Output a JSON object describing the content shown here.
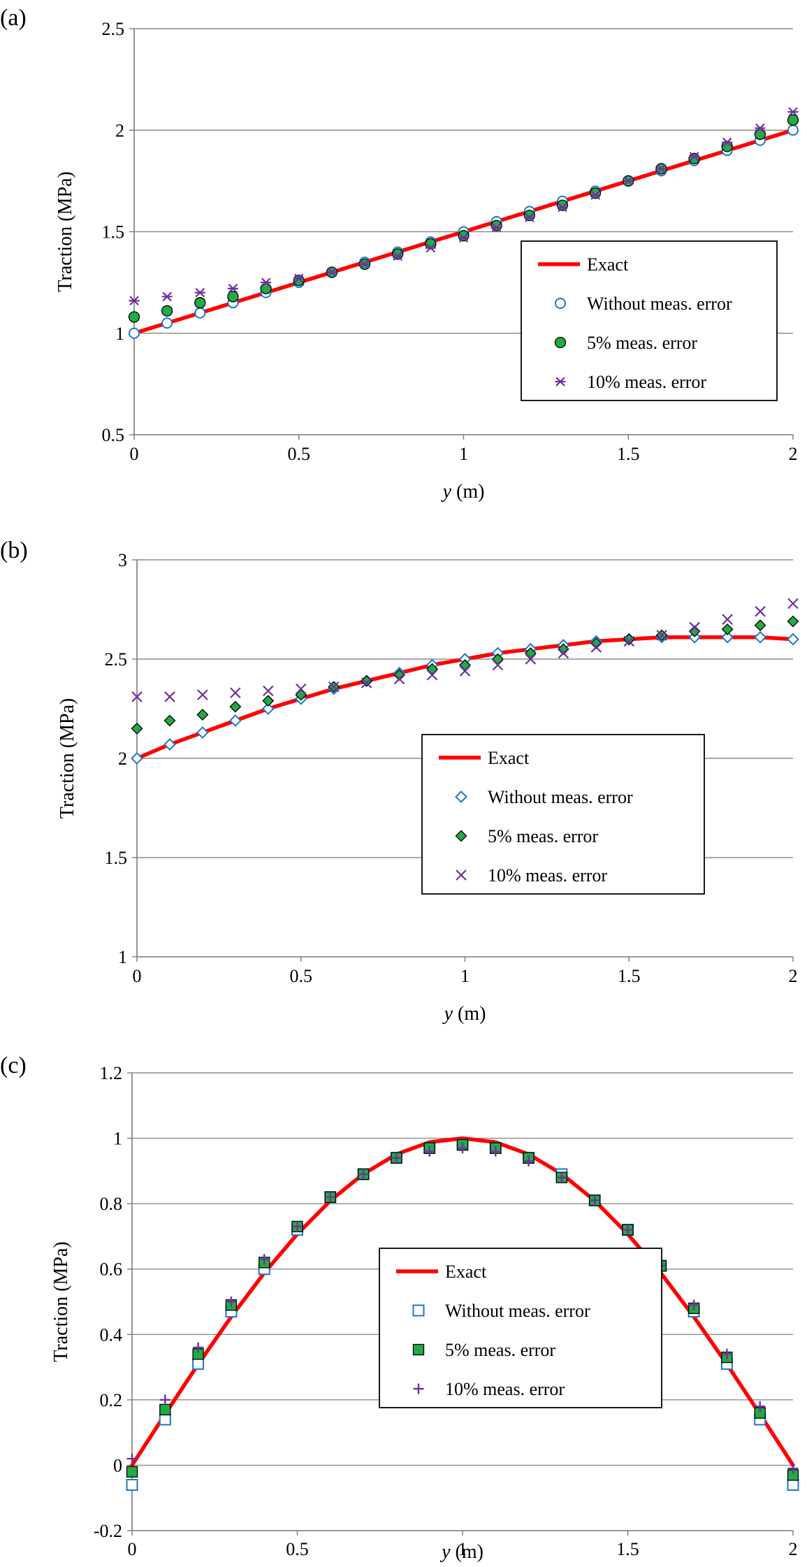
{
  "figure": {
    "colors": {
      "exact": "#ff0000",
      "without_error": "#1f77c8",
      "five_pct_fill": "#22aa44",
      "ten_pct": "#7030a0",
      "grid": "#8c8c8c"
    }
  },
  "chart_data": [
    {
      "panel_label": "(a)",
      "type": "line",
      "xlabel_italic": "y",
      "xlabel_unit": "(m)",
      "ylabel": "Traction (MPa)",
      "xlim": [
        0,
        2
      ],
      "ylim": [
        0.5,
        2.5
      ],
      "xticks": [
        0,
        0.5,
        1,
        1.5,
        2
      ],
      "xtick_labels": [
        "0",
        "0.5",
        "1",
        "1.5",
        "2"
      ],
      "yticks": [
        0.5,
        1,
        1.5,
        2,
        2.5
      ],
      "ytick_labels": [
        "0.5",
        "1",
        "1.5",
        "2",
        "2.5"
      ],
      "legend_position": "center-right",
      "x": [
        0,
        0.1,
        0.2,
        0.3,
        0.4,
        0.5,
        0.6,
        0.7,
        0.8,
        0.9,
        1.0,
        1.1,
        1.2,
        1.3,
        1.4,
        1.5,
        1.6,
        1.7,
        1.8,
        1.9,
        2.0
      ],
      "series": [
        {
          "name": "Exact",
          "kind": "line",
          "x": [
            0,
            2
          ],
          "values": [
            1.0,
            2.0
          ]
        },
        {
          "name": "Without meas. error",
          "marker": "open-circle",
          "values": [
            1.0,
            1.05,
            1.1,
            1.15,
            1.2,
            1.25,
            1.3,
            1.35,
            1.4,
            1.45,
            1.5,
            1.55,
            1.6,
            1.65,
            1.7,
            1.75,
            1.8,
            1.85,
            1.9,
            1.95,
            2.0
          ]
        },
        {
          "name": "5% meas. error",
          "marker": "filled-circle",
          "values": [
            1.08,
            1.11,
            1.15,
            1.18,
            1.22,
            1.26,
            1.3,
            1.34,
            1.39,
            1.44,
            1.48,
            1.53,
            1.58,
            1.63,
            1.69,
            1.75,
            1.81,
            1.86,
            1.92,
            1.98,
            2.05
          ]
        },
        {
          "name": "10% meas. error",
          "marker": "asterisk",
          "values": [
            1.16,
            1.18,
            1.2,
            1.22,
            1.25,
            1.27,
            1.3,
            1.34,
            1.38,
            1.42,
            1.47,
            1.52,
            1.57,
            1.62,
            1.68,
            1.75,
            1.81,
            1.87,
            1.94,
            2.01,
            2.09
          ]
        }
      ]
    },
    {
      "panel_label": "(b)",
      "type": "line",
      "xlabel_italic": "y",
      "xlabel_unit": "(m)",
      "ylabel": "Traction (MPa)",
      "xlim": [
        0,
        2
      ],
      "ylim": [
        1,
        3
      ],
      "xticks": [
        0,
        0.5,
        1,
        1.5,
        2
      ],
      "xtick_labels": [
        "0",
        "0.5",
        "1",
        "1.5",
        "2"
      ],
      "yticks": [
        1,
        1.5,
        2,
        2.5,
        3
      ],
      "ytick_labels": [
        "1",
        "1.5",
        "2",
        "2.5",
        "3"
      ],
      "legend_position": "center-right",
      "x": [
        0,
        0.1,
        0.2,
        0.3,
        0.4,
        0.5,
        0.6,
        0.7,
        0.8,
        0.9,
        1.0,
        1.1,
        1.2,
        1.3,
        1.4,
        1.5,
        1.6,
        1.7,
        1.8,
        1.9,
        2.0
      ],
      "series": [
        {
          "name": "Exact",
          "kind": "line",
          "x": [
            0,
            0.1,
            0.2,
            0.3,
            0.4,
            0.5,
            0.6,
            0.7,
            0.8,
            0.9,
            1.0,
            1.1,
            1.2,
            1.3,
            1.4,
            1.5,
            1.6,
            1.7,
            1.8,
            1.9,
            2.0
          ],
          "values": [
            2.0,
            2.07,
            2.13,
            2.19,
            2.25,
            2.3,
            2.35,
            2.39,
            2.43,
            2.47,
            2.5,
            2.53,
            2.55,
            2.57,
            2.59,
            2.6,
            2.61,
            2.61,
            2.61,
            2.61,
            2.6
          ]
        },
        {
          "name": "Without meas. error",
          "marker": "open-diamond",
          "values": [
            2.0,
            2.07,
            2.13,
            2.19,
            2.25,
            2.3,
            2.35,
            2.39,
            2.43,
            2.47,
            2.5,
            2.53,
            2.55,
            2.57,
            2.59,
            2.6,
            2.61,
            2.61,
            2.61,
            2.61,
            2.6
          ]
        },
        {
          "name": "5% meas. error",
          "marker": "filled-diamond",
          "values": [
            2.15,
            2.19,
            2.22,
            2.26,
            2.29,
            2.32,
            2.36,
            2.39,
            2.42,
            2.45,
            2.47,
            2.5,
            2.53,
            2.55,
            2.58,
            2.6,
            2.62,
            2.64,
            2.65,
            2.67,
            2.69
          ]
        },
        {
          "name": "10% meas. error",
          "marker": "x",
          "values": [
            2.31,
            2.31,
            2.32,
            2.33,
            2.34,
            2.35,
            2.36,
            2.38,
            2.4,
            2.42,
            2.44,
            2.47,
            2.5,
            2.53,
            2.56,
            2.59,
            2.62,
            2.66,
            2.7,
            2.74,
            2.78
          ]
        }
      ]
    },
    {
      "panel_label": "(c)",
      "type": "line",
      "xlabel_italic": "y",
      "xlabel_unit": "(m)",
      "ylabel": "Traction (MPa)",
      "xlim": [
        0,
        2
      ],
      "ylim": [
        -0.2,
        1.2
      ],
      "xticks": [
        0,
        0.5,
        1,
        1.5,
        2
      ],
      "xtick_labels": [
        "0",
        "0.5",
        "1",
        "1.5",
        "2"
      ],
      "yticks": [
        -0.2,
        0,
        0.2,
        0.4,
        0.6,
        0.8,
        1,
        1.2
      ],
      "ytick_labels": [
        "-0.2",
        "0",
        "0.2",
        "0.4",
        "0.6",
        "0.8",
        "1",
        "1.2"
      ],
      "legend_position": "lower-center",
      "x": [
        0,
        0.1,
        0.2,
        0.3,
        0.4,
        0.5,
        0.6,
        0.7,
        0.8,
        0.9,
        1.0,
        1.1,
        1.2,
        1.3,
        1.4,
        1.5,
        1.6,
        1.7,
        1.8,
        1.9,
        2.0
      ],
      "series": [
        {
          "name": "Exact",
          "kind": "line",
          "x": [
            0,
            0.1,
            0.2,
            0.3,
            0.4,
            0.5,
            0.6,
            0.7,
            0.8,
            0.9,
            1.0,
            1.1,
            1.2,
            1.3,
            1.4,
            1.5,
            1.6,
            1.7,
            1.8,
            1.9,
            2.0
          ],
          "values": [
            0.0,
            0.156,
            0.309,
            0.454,
            0.588,
            0.707,
            0.809,
            0.891,
            0.951,
            0.988,
            1.0,
            0.988,
            0.951,
            0.891,
            0.809,
            0.707,
            0.588,
            0.454,
            0.309,
            0.156,
            0.0
          ]
        },
        {
          "name": "Without meas. error",
          "marker": "open-square",
          "values": [
            -0.06,
            0.14,
            0.31,
            0.47,
            0.6,
            0.72,
            0.82,
            0.89,
            0.94,
            0.97,
            0.98,
            0.97,
            0.94,
            0.89,
            0.81,
            0.72,
            0.61,
            0.47,
            0.31,
            0.14,
            -0.06
          ]
        },
        {
          "name": "5% meas. error",
          "marker": "filled-square",
          "values": [
            -0.02,
            0.17,
            0.34,
            0.49,
            0.62,
            0.73,
            0.82,
            0.89,
            0.94,
            0.97,
            0.98,
            0.97,
            0.94,
            0.88,
            0.81,
            0.72,
            0.61,
            0.48,
            0.33,
            0.16,
            -0.03
          ]
        },
        {
          "name": "10% meas. error",
          "marker": "plus",
          "values": [
            0.02,
            0.2,
            0.36,
            0.5,
            0.63,
            0.73,
            0.82,
            0.89,
            0.94,
            0.96,
            0.97,
            0.96,
            0.93,
            0.88,
            0.81,
            0.72,
            0.61,
            0.49,
            0.34,
            0.18,
            -0.01
          ]
        }
      ]
    }
  ]
}
